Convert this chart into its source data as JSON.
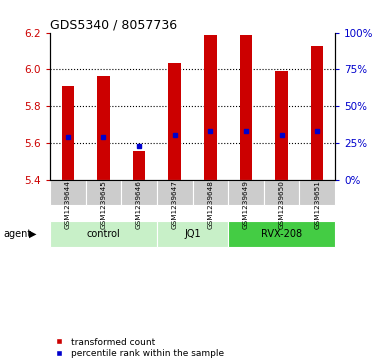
{
  "title": "GDS5340 / 8057736",
  "samples": [
    "GSM1239644",
    "GSM1239645",
    "GSM1239646",
    "GSM1239647",
    "GSM1239648",
    "GSM1239649",
    "GSM1239650",
    "GSM1239651"
  ],
  "bar_values": [
    5.91,
    5.965,
    5.555,
    6.035,
    6.19,
    6.19,
    5.99,
    6.13
  ],
  "bar_bottom": 5.4,
  "percentile_values": [
    5.635,
    5.635,
    5.585,
    5.645,
    5.665,
    5.665,
    5.645,
    5.665
  ],
  "groups": [
    {
      "label": "control",
      "indices": [
        0,
        1,
        2
      ],
      "color": "#c8f0c8"
    },
    {
      "label": "JQ1",
      "indices": [
        3,
        4
      ],
      "color": "#c8f0c8"
    },
    {
      "label": "RVX-208",
      "indices": [
        5,
        6,
        7
      ],
      "color": "#44cc44"
    }
  ],
  "ylim": [
    5.4,
    6.2
  ],
  "yticks_left": [
    5.4,
    5.6,
    5.8,
    6.0,
    6.2
  ],
  "yticks_right": [
    0,
    25,
    50,
    75,
    100
  ],
  "bar_color": "#cc0000",
  "percentile_color": "#0000cc",
  "sample_bg": "#cccccc",
  "plot_bg": "#ffffff",
  "agent_label": "agent",
  "legend_items": [
    {
      "label": "transformed count",
      "color": "#cc0000"
    },
    {
      "label": "percentile rank within the sample",
      "color": "#0000cc"
    }
  ]
}
